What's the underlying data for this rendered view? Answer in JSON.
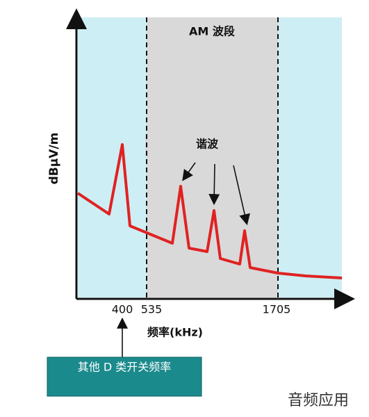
{
  "band_label": "AM 波段",
  "y_axis_label": "dBμV/m",
  "x_axis_label": "频率(kHz)",
  "x_tick_labels": [
    "400",
    "535",
    "1705"
  ],
  "annotation": "谐波",
  "callout": "其他 D 类开关频率",
  "watermark": "音频应用"
}
